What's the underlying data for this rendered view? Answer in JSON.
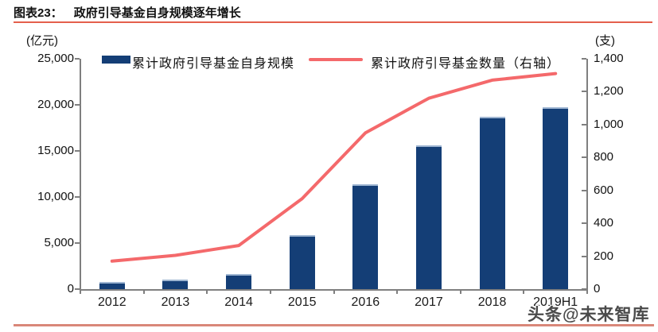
{
  "header": {
    "tag": "图表23：",
    "title": "政府引导基金自身规模逐年增长"
  },
  "legend": [
    {
      "label": "累计政府引导基金自身规模",
      "type": "bar",
      "color": "#143E76"
    },
    {
      "label": "累计政府引导基金数量（右轴）",
      "type": "line",
      "color": "#F4696B"
    }
  ],
  "watermark": "头条@未来智库",
  "colors": {
    "bar": "#143E76",
    "bar_top_edge": "#9FB6D2",
    "line": "#F4696B",
    "axis": "#7F7F7F",
    "title_rule": "#E4604C",
    "bottom_rule": "#D98779"
  },
  "chart_data": {
    "type": "bar",
    "subtype": "combo-bar-line-dual-axis",
    "title": "政府引导基金自身规模逐年增长",
    "categories": [
      "2012",
      "2013",
      "2014",
      "2015",
      "2016",
      "2017",
      "2018",
      "2019H1"
    ],
    "series": [
      {
        "name": "累计政府引导基金自身规模",
        "type": "bar",
        "axis": "left",
        "values": [
          800,
          1000,
          1600,
          5900,
          11350,
          15600,
          18750,
          19700
        ]
      },
      {
        "name": "累计政府引导基金数量（右轴）",
        "type": "line",
        "axis": "right",
        "values": [
          170,
          205,
          265,
          550,
          950,
          1160,
          1270,
          1310
        ]
      }
    ],
    "left_axis": {
      "unit": "(亿元)",
      "min": 0,
      "max": 25000,
      "step": 5000,
      "tick_labels": [
        "0",
        "5,000",
        "10,000",
        "15,000",
        "20,000",
        "25,000"
      ]
    },
    "right_axis": {
      "unit": "(支)",
      "min": 0,
      "max": 1400,
      "step": 200,
      "tick_labels": [
        "0",
        "200",
        "400",
        "600",
        "800",
        "1,000",
        "1,200",
        "1,400"
      ]
    },
    "legend_position": "top",
    "grid": false
  }
}
